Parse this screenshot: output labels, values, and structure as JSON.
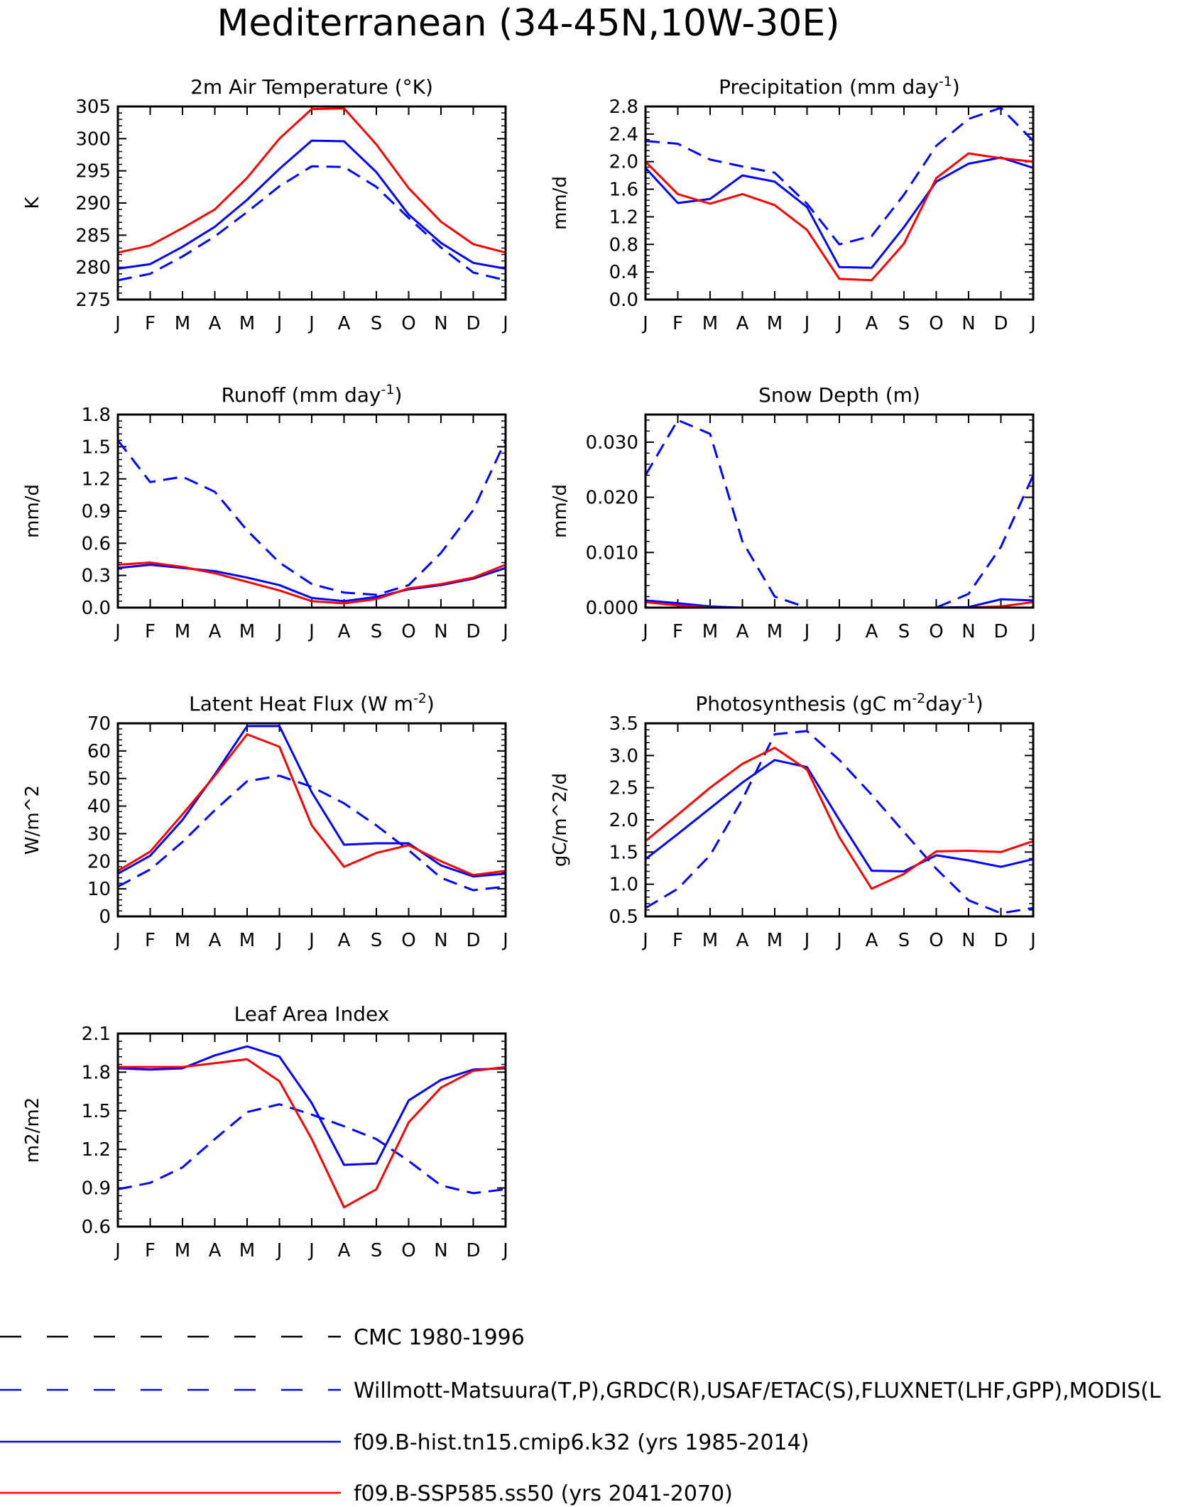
{
  "title": "Mediterranean (34-45N,10W-30E)",
  "colors": {
    "observed": "#0000ff",
    "hist": "#0000ff",
    "future": "#ff0000",
    "cmc": "#000000"
  },
  "legend": [
    {
      "label": "CMC 1980-1996",
      "color": "#000000",
      "style": "dashed"
    },
    {
      "label": "Willmott-Matsuura(T,P),GRDC(R),USAF/ETAC(S),FLUXNET(LHF,GPP),MODIS(L",
      "color": "#0000ff",
      "style": "dashed"
    },
    {
      "label": "f09.B-hist.tn15.cmip6.k32 (yrs 1985-2014)",
      "color": "#0000ff",
      "style": "solid"
    },
    {
      "label": "f09.B-SSP585.ss50 (yrs 2041-2070)",
      "color": "#ff0000",
      "style": "solid"
    }
  ],
  "chart_data": [
    {
      "type": "line",
      "title": "2m Air Temperature (°K)",
      "ylabel": "K",
      "x": [
        "J",
        "F",
        "M",
        "A",
        "M",
        "J",
        "J",
        "A",
        "S",
        "O",
        "N",
        "D",
        "J"
      ],
      "ylim": [
        275,
        305
      ],
      "yticks": [
        "275",
        "280",
        "285",
        "290",
        "295",
        "300",
        "305"
      ],
      "series": [
        {
          "values": [
            278.0,
            279.0,
            281.7,
            284.8,
            288.6,
            292.6,
            295.7,
            295.6,
            292.5,
            287.7,
            283.1,
            279.2,
            278.0
          ],
          "color": "#0000ff",
          "style": "dashed"
        },
        {
          "values": [
            279.8,
            280.5,
            283.2,
            286.3,
            290.5,
            295.3,
            299.7,
            299.6,
            294.8,
            288.2,
            283.8,
            280.7,
            279.8
          ],
          "color": "#0000ff",
          "style": "solid"
        },
        {
          "values": [
            282.3,
            283.4,
            286.1,
            289.0,
            293.9,
            300.0,
            304.6,
            304.7,
            299.1,
            292.3,
            287.1,
            283.6,
            282.3
          ],
          "color": "#ff0000",
          "style": "solid"
        }
      ]
    },
    {
      "type": "line",
      "title": "Precipitation (mm day",
      "title_sup": "-1",
      "title_end": ")",
      "ylabel": "mm/d",
      "x": [
        "J",
        "F",
        "M",
        "A",
        "M",
        "J",
        "J",
        "A",
        "S",
        "O",
        "N",
        "D",
        "J"
      ],
      "ylim": [
        0.0,
        2.8
      ],
      "yticks": [
        "0.0",
        "0.4",
        "0.8",
        "1.2",
        "1.6",
        "2.0",
        "2.4",
        "2.8"
      ],
      "series": [
        {
          "values": [
            2.3,
            2.26,
            2.03,
            1.93,
            1.84,
            1.39,
            0.8,
            0.92,
            1.52,
            2.23,
            2.62,
            2.78,
            2.3
          ],
          "color": "#0000ff",
          "style": "dashed"
        },
        {
          "values": [
            1.91,
            1.4,
            1.46,
            1.8,
            1.71,
            1.34,
            0.47,
            0.46,
            1.05,
            1.71,
            1.97,
            2.06,
            1.91
          ],
          "color": "#0000ff",
          "style": "solid"
        },
        {
          "values": [
            2.0,
            1.53,
            1.39,
            1.53,
            1.37,
            1.01,
            0.3,
            0.28,
            0.81,
            1.76,
            2.12,
            2.05,
            2.0
          ],
          "color": "#ff0000",
          "style": "solid"
        }
      ]
    },
    {
      "type": "line",
      "title": "Runoff (mm day",
      "title_sup": "-1",
      "title_end": ")",
      "ylabel": "mm/d",
      "x": [
        "J",
        "F",
        "M",
        "A",
        "M",
        "J",
        "J",
        "A",
        "S",
        "O",
        "N",
        "D",
        "J"
      ],
      "ylim": [
        0.0,
        1.8
      ],
      "yticks": [
        "0.0",
        "0.3",
        "0.6",
        "0.9",
        "1.2",
        "1.5",
        "1.8"
      ],
      "series": [
        {
          "values": [
            1.56,
            1.17,
            1.22,
            1.08,
            0.72,
            0.42,
            0.22,
            0.14,
            0.12,
            0.21,
            0.51,
            0.91,
            1.56
          ],
          "color": "#0000ff",
          "style": "dashed"
        },
        {
          "values": [
            0.37,
            0.4,
            0.37,
            0.34,
            0.28,
            0.21,
            0.09,
            0.06,
            0.1,
            0.17,
            0.21,
            0.27,
            0.37
          ],
          "color": "#0000ff",
          "style": "solid"
        },
        {
          "values": [
            0.4,
            0.42,
            0.38,
            0.32,
            0.24,
            0.16,
            0.06,
            0.04,
            0.08,
            0.18,
            0.22,
            0.28,
            0.4
          ],
          "color": "#ff0000",
          "style": "solid"
        }
      ]
    },
    {
      "type": "line",
      "title": "Snow Depth (m)",
      "ylabel": "mm/d",
      "x": [
        "J",
        "F",
        "M",
        "A",
        "M",
        "J",
        "J",
        "A",
        "S",
        "O",
        "N",
        "D",
        "J"
      ],
      "ylim": [
        0.0,
        0.035
      ],
      "yticks": [
        "0.000",
        "0.010",
        "0.020",
        "0.030"
      ],
      "ytick_values": [
        0.0,
        0.01,
        0.02,
        0.03
      ],
      "series": [
        {
          "values": [
            0.024,
            0.034,
            0.0315,
            0.012,
            0.002,
            0.0,
            0.0,
            0.0,
            0.0,
            0.0,
            0.0025,
            0.011,
            0.024
          ],
          "color": "#0000ff",
          "style": "dashed"
        },
        {
          "values": [
            0.0013,
            0.0008,
            0.0002,
            0.0,
            0.0,
            0.0,
            0.0,
            0.0,
            0.0,
            0.0,
            0.0001,
            0.0015,
            0.0013
          ],
          "color": "#0000ff",
          "style": "solid"
        },
        {
          "values": [
            0.001,
            0.0004,
            0.0,
            0.0,
            0.0,
            0.0,
            0.0,
            0.0,
            0.0,
            0.0,
            0.0,
            0.0002,
            0.001
          ],
          "color": "#ff0000",
          "style": "solid"
        }
      ]
    },
    {
      "type": "line",
      "title": "Latent Heat Flux (W m",
      "title_sup": "-2",
      "title_end": ")",
      "ylabel": "W/m^2",
      "x": [
        "J",
        "F",
        "M",
        "A",
        "M",
        "J",
        "J",
        "A",
        "S",
        "O",
        "N",
        "D",
        "J"
      ],
      "ylim": [
        0,
        70
      ],
      "yticks": [
        "0",
        "10",
        "20",
        "30",
        "40",
        "50",
        "60",
        "70"
      ],
      "series": [
        {
          "values": [
            10.8,
            17.0,
            27.0,
            38.5,
            49.0,
            51.0,
            47.0,
            41.0,
            33.0,
            24.0,
            14.0,
            9.5,
            10.8
          ],
          "color": "#0000ff",
          "style": "dashed"
        },
        {
          "values": [
            15.5,
            22.0,
            35.0,
            51.5,
            69.0,
            69.0,
            45.0,
            26.0,
            26.5,
            26.5,
            18.5,
            14.5,
            15.5
          ],
          "color": "#0000ff",
          "style": "solid"
        },
        {
          "values": [
            16.5,
            23.5,
            37.0,
            51.0,
            66.0,
            61.5,
            33.0,
            18.0,
            23.0,
            25.8,
            20.0,
            15.0,
            16.5
          ],
          "color": "#ff0000",
          "style": "solid"
        }
      ]
    },
    {
      "type": "line",
      "title": "Photosynthesis (gC m",
      "title_sup": "-2",
      "title_end": "day",
      "title_sup2": "-1",
      "title_end2": ")",
      "ylabel": "gC/m^2/d",
      "x": [
        "J",
        "F",
        "M",
        "A",
        "M",
        "J",
        "J",
        "A",
        "S",
        "O",
        "N",
        "D",
        "J"
      ],
      "ylim": [
        0.5,
        3.5
      ],
      "yticks": [
        "0.5",
        "1.0",
        "1.5",
        "2.0",
        "2.5",
        "3.0",
        "3.5"
      ],
      "series": [
        {
          "values": [
            0.63,
            0.93,
            1.45,
            2.32,
            3.33,
            3.38,
            2.93,
            2.39,
            1.81,
            1.24,
            0.75,
            0.55,
            0.63
          ],
          "color": "#0000ff",
          "style": "dashed"
        },
        {
          "values": [
            1.39,
            1.78,
            2.18,
            2.58,
            2.93,
            2.82,
            2.0,
            1.21,
            1.2,
            1.45,
            1.37,
            1.27,
            1.39
          ],
          "color": "#0000ff",
          "style": "solid"
        },
        {
          "values": [
            1.67,
            2.08,
            2.5,
            2.87,
            3.12,
            2.78,
            1.73,
            0.93,
            1.16,
            1.51,
            1.52,
            1.5,
            1.67
          ],
          "color": "#ff0000",
          "style": "solid"
        }
      ]
    },
    {
      "type": "line",
      "title": "Leaf Area Index",
      "ylabel": "m2/m2",
      "x": [
        "J",
        "F",
        "M",
        "A",
        "M",
        "J",
        "J",
        "A",
        "S",
        "O",
        "N",
        "D",
        "J"
      ],
      "ylim": [
        0.6,
        2.1
      ],
      "yticks": [
        "0.6",
        "0.9",
        "1.2",
        "1.5",
        "1.8",
        "2.1"
      ],
      "series": [
        {
          "values": [
            0.89,
            0.94,
            1.06,
            1.28,
            1.49,
            1.55,
            1.47,
            1.38,
            1.28,
            1.11,
            0.92,
            0.86,
            0.89
          ],
          "color": "#0000ff",
          "style": "dashed"
        },
        {
          "values": [
            1.83,
            1.82,
            1.83,
            1.93,
            2.0,
            1.92,
            1.56,
            1.08,
            1.09,
            1.58,
            1.74,
            1.82,
            1.83
          ],
          "color": "#0000ff",
          "style": "solid"
        },
        {
          "values": [
            1.84,
            1.84,
            1.84,
            1.87,
            1.9,
            1.73,
            1.28,
            0.75,
            0.89,
            1.41,
            1.68,
            1.81,
            1.84
          ],
          "color": "#ff0000",
          "style": "solid"
        }
      ]
    }
  ]
}
